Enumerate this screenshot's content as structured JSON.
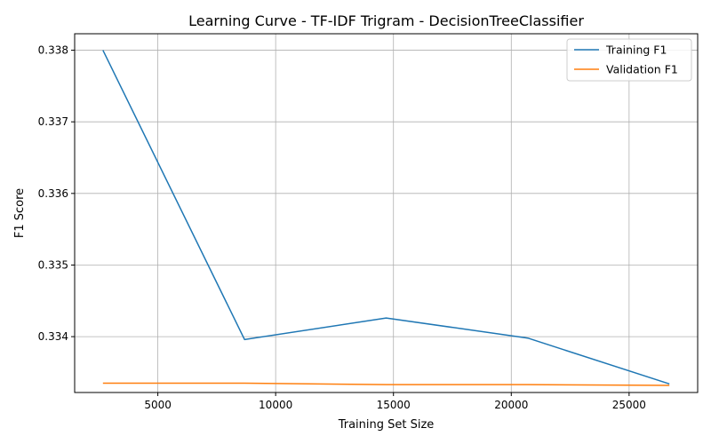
{
  "chart_data": {
    "type": "line",
    "title": "Learning Curve - TF-IDF Trigram - DecisionTreeClassifier",
    "xlabel": "Training Set Size",
    "ylabel": "F1 Score",
    "x": [
      2670,
      8680,
      14690,
      20700,
      26710
    ],
    "series": [
      {
        "name": "Training F1",
        "color": "#1f77b4",
        "values": [
          0.338,
          0.33396,
          0.33426,
          0.33398,
          0.33334
        ]
      },
      {
        "name": "Validation F1",
        "color": "#ff7f0e",
        "values": [
          0.33335,
          0.33335,
          0.33333,
          0.33333,
          0.33332
        ]
      }
    ],
    "xlim": [
      1470,
      27910
    ],
    "ylim": [
      0.33322,
      0.33823
    ],
    "xticks": [
      5000,
      10000,
      15000,
      20000,
      25000
    ],
    "xtick_labels": [
      "5000",
      "10000",
      "15000",
      "20000",
      "25000"
    ],
    "yticks": [
      0.334,
      0.335,
      0.336,
      0.337,
      0.338
    ],
    "ytick_labels": [
      "0.334",
      "0.335",
      "0.336",
      "0.337",
      "0.338"
    ],
    "grid": true,
    "legend_position": "top-right"
  }
}
